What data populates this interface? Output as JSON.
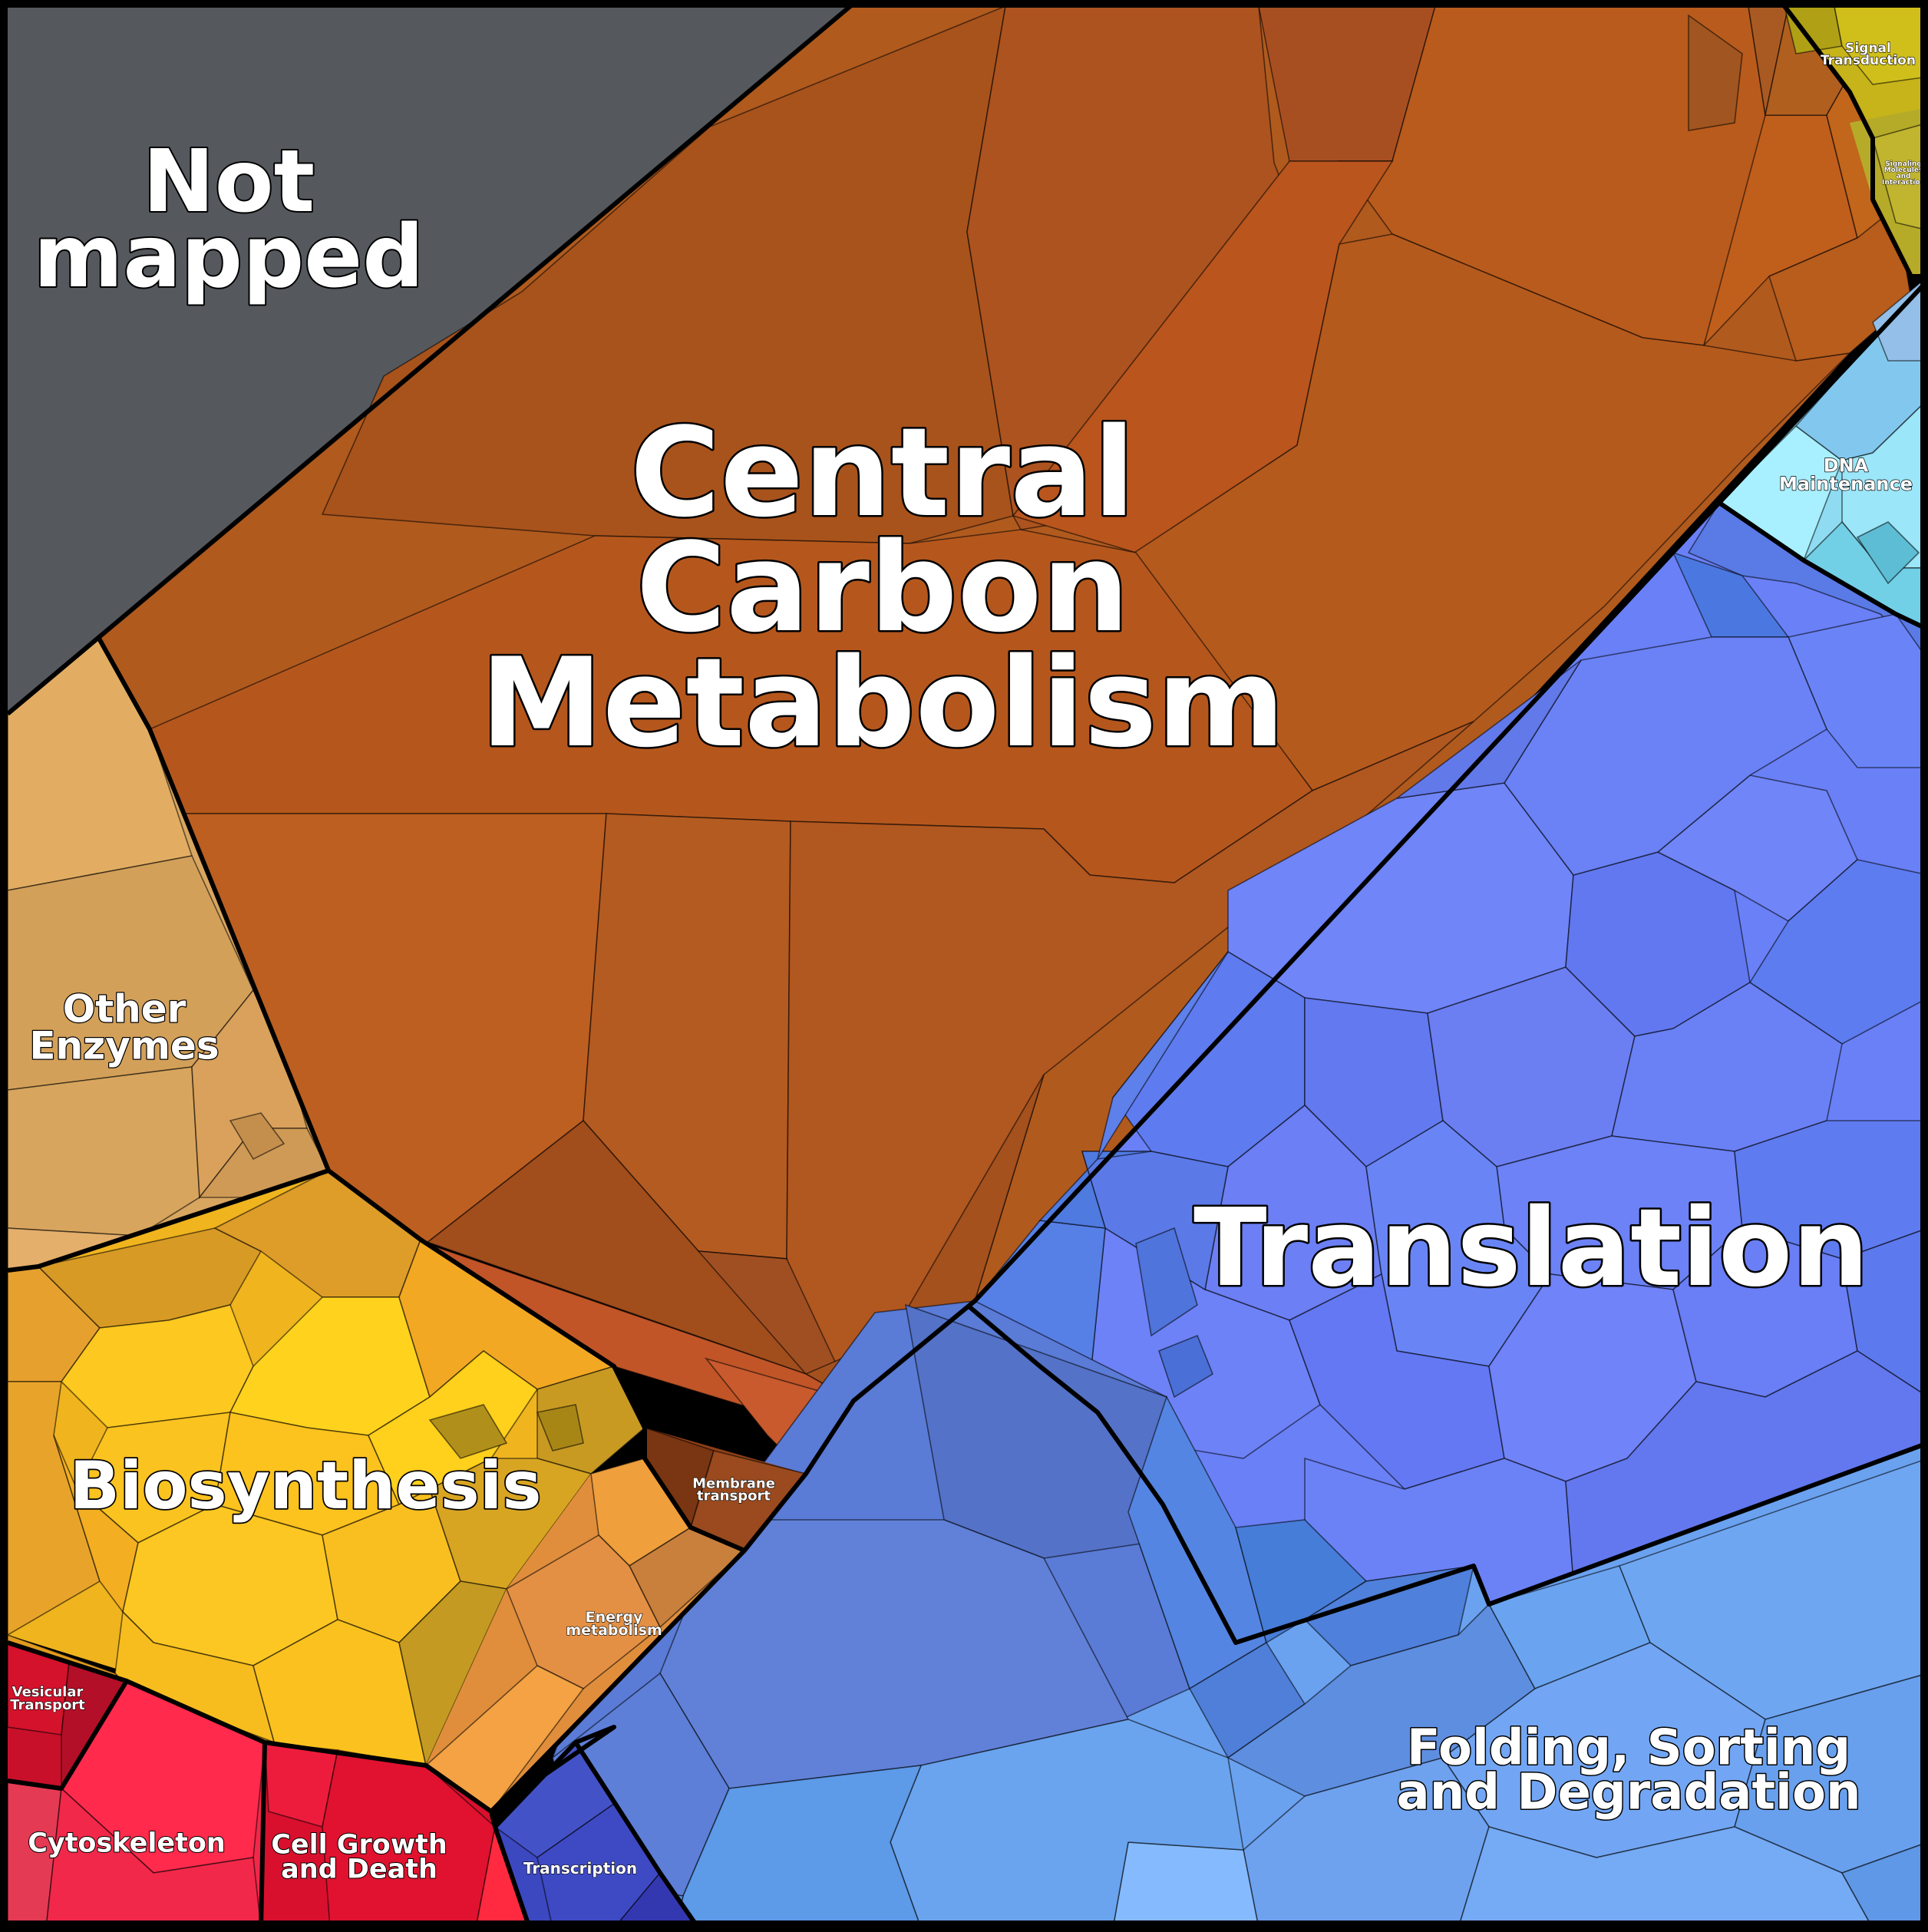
{
  "diagram": {
    "type": "voronoi-treemap",
    "categories": [
      {
        "id": "not_mapped",
        "label_lines": [
          "Not",
          "mapped"
        ],
        "color": "#55595e"
      },
      {
        "id": "central_carbon",
        "label_lines": [
          "Central",
          "Carbon",
          "Metabolism"
        ],
        "color": "#b35a1f"
      },
      {
        "id": "signal_transduction",
        "label_lines": [
          "Signal",
          "Transduction"
        ],
        "color": "#c8b414"
      },
      {
        "id": "signaling_molecules",
        "label_lines": [
          "Signaling",
          "Molecules",
          "and",
          "Interaction"
        ],
        "color": "#b8ae2a"
      },
      {
        "id": "dna_maintenance",
        "label_lines": [
          "DNA",
          "Maintenance"
        ],
        "color": "#7fd8f0"
      },
      {
        "id": "translation",
        "label_lines": [
          "Translation"
        ],
        "color": "#6a80f5"
      },
      {
        "id": "folding",
        "label_lines": [
          "Folding, Sorting",
          "and Degradation"
        ],
        "color": "#6aa2f0"
      },
      {
        "id": "other_enzymes",
        "label_lines": [
          "Other",
          "Enzymes"
        ],
        "color": "#d6a45c"
      },
      {
        "id": "biosynthesis",
        "label_lines": [
          "Biosynthesis"
        ],
        "color": "#f0b41e"
      },
      {
        "id": "membrane_transport",
        "label_lines": [
          "Membrane",
          "transport"
        ],
        "color": "#8e3f16"
      },
      {
        "id": "energy_metabolism",
        "label_lines": [
          "Energy",
          "metabolism"
        ],
        "color": "#e08e3c"
      },
      {
        "id": "vesicular_transport",
        "label_lines": [
          "Vesicular",
          "Transport"
        ],
        "color": "#c8102a"
      },
      {
        "id": "cytoskeleton",
        "label_lines": [
          "Cytoskeleton"
        ],
        "color": "#f0284a"
      },
      {
        "id": "cell_growth",
        "label_lines": [
          "Cell Growth",
          "and Death"
        ],
        "color": "#d8102e"
      },
      {
        "id": "transcription",
        "label_lines": [
          "Transcription"
        ],
        "color": "#3c48c0"
      }
    ]
  }
}
